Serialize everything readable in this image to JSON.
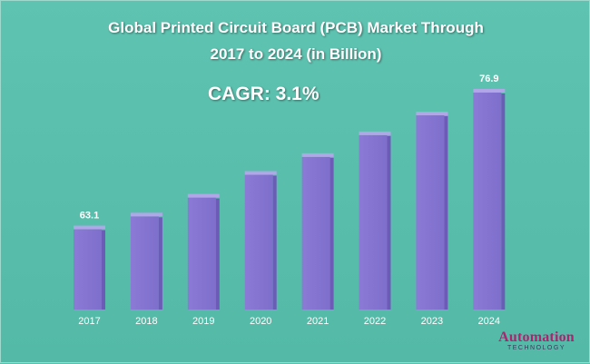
{
  "chart_data": {
    "type": "bar",
    "title_line1": "Global Printed Circuit Board (PCB) Market Through",
    "title_line2": "2017 to 2024 (in Billion)",
    "annotation": "CAGR: 3.1%",
    "categories": [
      "2017",
      "2018",
      "2019",
      "2020",
      "2021",
      "2022",
      "2023",
      "2024"
    ],
    "values": [
      63.1,
      64.4,
      66.3,
      68.6,
      70.4,
      72.6,
      74.6,
      76.9
    ],
    "data_labels": {
      "0": "63.1",
      "7": "76.9"
    },
    "xlabel": "",
    "ylabel": "",
    "ylim": [
      55,
      79
    ],
    "grid": false,
    "legend": "none",
    "bar_color": "#8b7bd6",
    "bar_top_color": "#b0a6e8",
    "bar_side_color": "#6c5cb8"
  },
  "logo": {
    "main": "Automation",
    "sub": "TECHNOLOGY"
  }
}
